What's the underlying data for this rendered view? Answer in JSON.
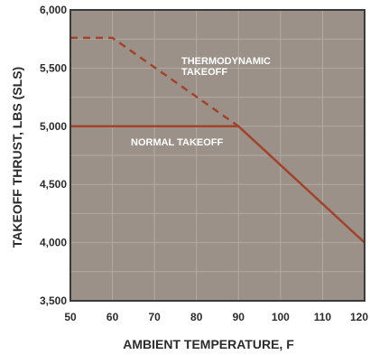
{
  "chart_data": {
    "type": "line",
    "xlabel": "AMBIENT TEMPERATURE, F",
    "ylabel": "TAKEOFF THRUST, LBS (SLS)",
    "xlim": [
      50,
      120
    ],
    "ylim": [
      3500,
      6000
    ],
    "x_ticks": [
      50,
      60,
      70,
      80,
      90,
      100,
      110,
      120
    ],
    "y_ticks": [
      3500,
      4000,
      4500,
      5000,
      5500,
      6000
    ],
    "x_tick_labels": [
      "50",
      "60",
      "70",
      "80",
      "90",
      "100",
      "110",
      "120"
    ],
    "y_tick_labels": [
      "3,500",
      "4,000",
      "4,500",
      "5,000",
      "5,500",
      "6,000"
    ],
    "grid": true,
    "series": [
      {
        "style": "solid",
        "x": [
          50,
          90,
          120
        ],
        "y": [
          5000,
          5000,
          4000
        ]
      },
      {
        "style": "dashed",
        "x": [
          50,
          60,
          90
        ],
        "y": [
          5760,
          5760,
          5000
        ]
      }
    ],
    "annotations": [
      {
        "lines": [
          "THERMODYNAMIC",
          "TAKEOFF"
        ]
      },
      {
        "lines": [
          "NORMAL TAKEOFF"
        ]
      }
    ],
    "colors": {
      "plot_bg": "#9b9188",
      "grid": "#b3aaa2",
      "border": "#3a3a3a",
      "line": "#a2432b",
      "annotation_text": "#ffffff"
    }
  }
}
